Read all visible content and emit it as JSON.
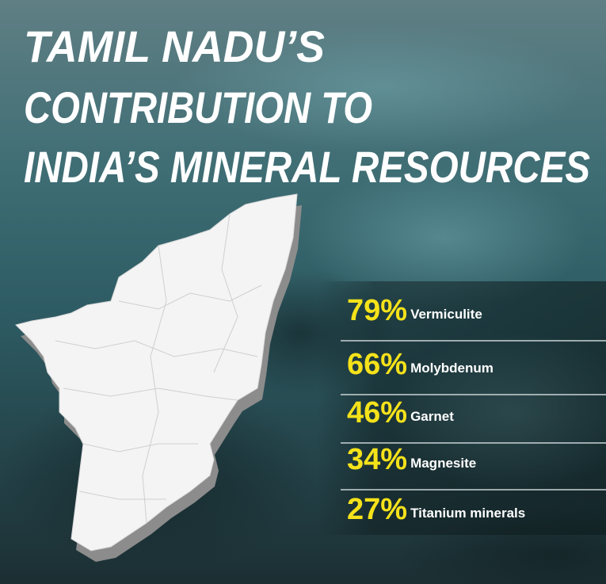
{
  "title": {
    "lines": [
      "TAMIL NADU’S",
      "CONTRIBUTION TO",
      "INDIA’S MINERAL RESOURCES"
    ]
  },
  "items": [
    {
      "percent": "79%",
      "mineral": "Vermiculite"
    },
    {
      "percent": "66%",
      "mineral": "Molybdenum"
    },
    {
      "percent": "46%",
      "mineral": "Garnet"
    },
    {
      "percent": "34%",
      "mineral": "Magnesite"
    },
    {
      "percent": "27%",
      "mineral": "Titanium minerals"
    }
  ]
}
